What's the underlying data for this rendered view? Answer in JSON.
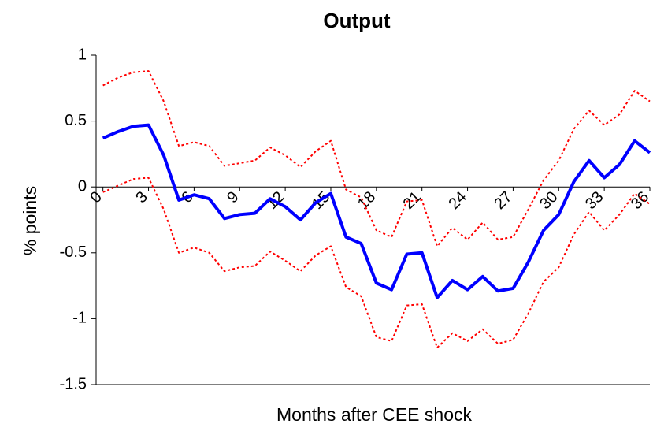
{
  "chart_data": {
    "type": "line",
    "title": "Output",
    "x_label": "Months after CEE shock",
    "y_label": "% points",
    "x": [
      0,
      1,
      2,
      3,
      4,
      5,
      6,
      7,
      8,
      9,
      10,
      11,
      12,
      13,
      14,
      15,
      16,
      17,
      18,
      19,
      20,
      21,
      22,
      23,
      24,
      25,
      26,
      27,
      28,
      29,
      30,
      31,
      32,
      33,
      34,
      35,
      36
    ],
    "xlim": [
      -0.45,
      36
    ],
    "xticks": [
      0,
      3,
      6,
      9,
      12,
      15,
      18,
      21,
      24,
      27,
      30,
      33,
      36
    ],
    "ylim": [
      -1.5,
      1
    ],
    "yticks": [
      -1.5,
      -1,
      -0.5,
      0,
      0.5,
      1
    ],
    "series": [
      {
        "color": "#0000ff",
        "style": "solid",
        "values": [
          0.37,
          0.42,
          0.46,
          0.47,
          0.24,
          -0.1,
          -0.06,
          -0.09,
          -0.24,
          -0.21,
          -0.2,
          -0.09,
          -0.15,
          -0.25,
          -0.12,
          -0.05,
          -0.38,
          -0.43,
          -0.73,
          -0.78,
          -0.51,
          -0.5,
          -0.84,
          -0.71,
          -0.78,
          -0.68,
          -0.79,
          -0.77,
          -0.57,
          -0.33,
          -0.21,
          0.04,
          0.2,
          0.07,
          0.17,
          0.35,
          0.26
        ]
      },
      {
        "color": "#ff0000",
        "style": "dotted",
        "values": [
          0.77,
          0.83,
          0.87,
          0.88,
          0.65,
          0.31,
          0.34,
          0.31,
          0.16,
          0.18,
          0.2,
          0.3,
          0.24,
          0.15,
          0.27,
          0.35,
          -0.02,
          -0.08,
          -0.33,
          -0.38,
          -0.11,
          -0.1,
          -0.45,
          -0.31,
          -0.4,
          -0.27,
          -0.4,
          -0.38,
          -0.17,
          0.05,
          0.2,
          0.44,
          0.58,
          0.47,
          0.55,
          0.73,
          0.65
        ]
      },
      {
        "color": "#ff0000",
        "style": "dotted",
        "values": [
          -0.04,
          0.01,
          0.06,
          0.07,
          -0.17,
          -0.5,
          -0.46,
          -0.5,
          -0.64,
          -0.61,
          -0.6,
          -0.49,
          -0.56,
          -0.64,
          -0.52,
          -0.45,
          -0.76,
          -0.83,
          -1.14,
          -1.17,
          -0.9,
          -0.89,
          -1.22,
          -1.11,
          -1.17,
          -1.08,
          -1.19,
          -1.16,
          -0.96,
          -0.72,
          -0.61,
          -0.36,
          -0.19,
          -0.33,
          -0.21,
          -0.05,
          -0.13
        ]
      }
    ]
  }
}
